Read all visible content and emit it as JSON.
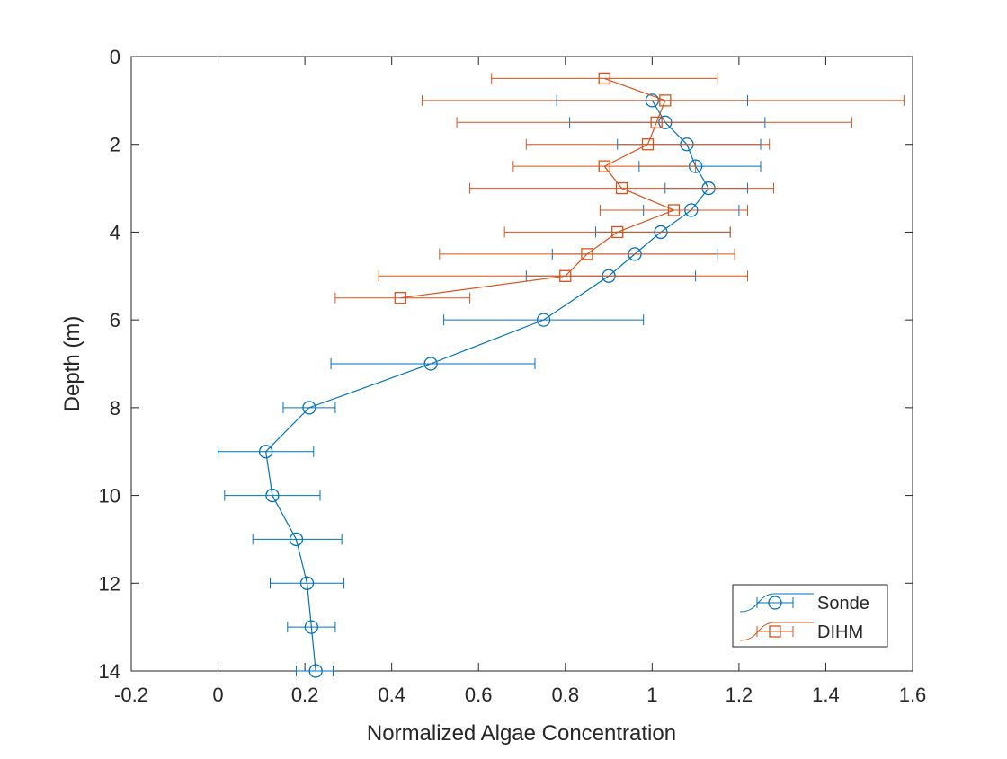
{
  "chart_data": {
    "type": "line",
    "xlabel": "Normalized Algae Concentration",
    "ylabel": "Depth (m)",
    "xlim": [
      -0.2,
      1.6
    ],
    "ylim": [
      0,
      14
    ],
    "y_reversed": true,
    "xticks": [
      "-0.2",
      "0",
      "0.2",
      "0.4",
      "0.6",
      "0.8",
      "1",
      "1.2",
      "1.4",
      "1.6"
    ],
    "yticks": [
      "0",
      "2",
      "4",
      "6",
      "8",
      "10",
      "12",
      "14"
    ],
    "grid": false,
    "legend_position": "bottom-right",
    "series": [
      {
        "name": "Sonde",
        "color": "#0072BD",
        "marker": "circle",
        "points": [
          {
            "y": 1.0,
            "x": 1.0,
            "xlow": 0.78,
            "xhigh": 1.22
          },
          {
            "y": 1.5,
            "x": 1.03,
            "xlow": 0.81,
            "xhigh": 1.26
          },
          {
            "y": 2.0,
            "x": 1.08,
            "xlow": 0.92,
            "xhigh": 1.25
          },
          {
            "y": 2.5,
            "x": 1.1,
            "xlow": 0.97,
            "xhigh": 1.25
          },
          {
            "y": 3.0,
            "x": 1.13,
            "xlow": 1.03,
            "xhigh": 1.22
          },
          {
            "y": 3.5,
            "x": 1.09,
            "xlow": 0.98,
            "xhigh": 1.2
          },
          {
            "y": 4.0,
            "x": 1.02,
            "xlow": 0.87,
            "xhigh": 1.18
          },
          {
            "y": 4.5,
            "x": 0.96,
            "xlow": 0.77,
            "xhigh": 1.15
          },
          {
            "y": 5.0,
            "x": 0.9,
            "xlow": 0.71,
            "xhigh": 1.1
          },
          {
            "y": 6.0,
            "x": 0.75,
            "xlow": 0.52,
            "xhigh": 0.98
          },
          {
            "y": 7.0,
            "x": 0.49,
            "xlow": 0.26,
            "xhigh": 0.73
          },
          {
            "y": 8.0,
            "x": 0.21,
            "xlow": 0.15,
            "xhigh": 0.27
          },
          {
            "y": 9.0,
            "x": 0.11,
            "xlow": 0.0,
            "xhigh": 0.22
          },
          {
            "y": 10.0,
            "x": 0.125,
            "xlow": 0.015,
            "xhigh": 0.235
          },
          {
            "y": 11.0,
            "x": 0.18,
            "xlow": 0.08,
            "xhigh": 0.285
          },
          {
            "y": 12.0,
            "x": 0.205,
            "xlow": 0.12,
            "xhigh": 0.29
          },
          {
            "y": 13.0,
            "x": 0.215,
            "xlow": 0.16,
            "xhigh": 0.27
          },
          {
            "y": 14.0,
            "x": 0.225,
            "xlow": 0.18,
            "xhigh": 0.265
          }
        ]
      },
      {
        "name": "DIHM",
        "color": "#D95319",
        "marker": "square",
        "points": [
          {
            "y": 0.5,
            "x": 0.89,
            "xlow": 0.63,
            "xhigh": 1.15
          },
          {
            "y": 1.0,
            "x": 1.03,
            "xlow": 0.47,
            "xhigh": 1.58
          },
          {
            "y": 1.5,
            "x": 1.01,
            "xlow": 0.55,
            "xhigh": 1.46
          },
          {
            "y": 2.0,
            "x": 0.99,
            "xlow": 0.71,
            "xhigh": 1.27
          },
          {
            "y": 2.5,
            "x": 0.89,
            "xlow": 0.68,
            "xhigh": 1.1
          },
          {
            "y": 3.0,
            "x": 0.93,
            "xlow": 0.58,
            "xhigh": 1.28
          },
          {
            "y": 3.5,
            "x": 1.05,
            "xlow": 0.88,
            "xhigh": 1.22
          },
          {
            "y": 4.0,
            "x": 0.92,
            "xlow": 0.66,
            "xhigh": 1.18
          },
          {
            "y": 4.5,
            "x": 0.85,
            "xlow": 0.51,
            "xhigh": 1.19
          },
          {
            "y": 5.0,
            "x": 0.8,
            "xlow": 0.37,
            "xhigh": 1.22
          },
          {
            "y": 5.5,
            "x": 0.42,
            "xlow": 0.27,
            "xhigh": 0.58
          }
        ]
      }
    ]
  }
}
